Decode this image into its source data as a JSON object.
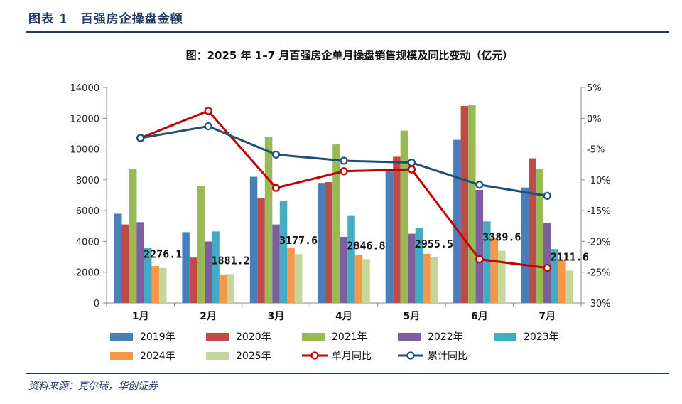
{
  "figure_label": "图表 1　百强房企操盘金额",
  "source": "资料来源：克尔瑞，华创证券",
  "chart_data": {
    "type": "bar",
    "title": "图：2025 年 1–7 月百强房企单月操盘销售规模及同比变动（亿元）",
    "categories": [
      "1月",
      "2月",
      "3月",
      "4月",
      "5月",
      "6月",
      "7月"
    ],
    "ylim": [
      0,
      14000
    ],
    "yticks": [
      "0",
      "2000",
      "4000",
      "6000",
      "8000",
      "10000",
      "12000",
      "14000"
    ],
    "y2lim": [
      -30,
      5
    ],
    "y2ticks": [
      "-30%",
      "-25%",
      "-20%",
      "-15%",
      "-10%",
      "-5%",
      "0%",
      "5%"
    ],
    "series": [
      {
        "name": "2019年",
        "color": "#4a7ebb",
        "values": [
          5800,
          4600,
          8200,
          7800,
          8600,
          10600,
          7500
        ]
      },
      {
        "name": "2020年",
        "color": "#be4b48",
        "values": [
          5100,
          2950,
          6800,
          7850,
          9500,
          12800,
          9400
        ]
      },
      {
        "name": "2021年",
        "color": "#98b954",
        "values": [
          8700,
          7600,
          10800,
          10300,
          11200,
          12850,
          8700
        ]
      },
      {
        "name": "2022年",
        "color": "#7d5fa0",
        "values": [
          5250,
          4000,
          5100,
          4300,
          4500,
          7350,
          5200
        ]
      },
      {
        "name": "2023年",
        "color": "#46aac4",
        "values": [
          3600,
          4650,
          6650,
          5700,
          4850,
          5300,
          3500
        ]
      },
      {
        "name": "2024年",
        "color": "#f79646",
        "values": [
          2400,
          1850,
          3600,
          3100,
          3200,
          4200,
          2800
        ]
      },
      {
        "name": "2025年",
        "color": "#c3d69b",
        "values": [
          2276.1,
          1881.2,
          3177.6,
          2846.8,
          2955.5,
          3389.6,
          2111.6
        ]
      }
    ],
    "data_labels": [
      "2276.1",
      "1881.2",
      "3177.6",
      "2846.8",
      "2955.5",
      "3389.6",
      "2111.6"
    ],
    "lines": [
      {
        "name": "单月同比",
        "color": "#c00000",
        "values": [
          -3.2,
          1.2,
          -11.3,
          -8.6,
          -8.3,
          -22.9,
          -24.3
        ]
      },
      {
        "name": "累计同比",
        "color": "#1f4e79",
        "values": [
          -3.2,
          -1.3,
          -5.9,
          -6.9,
          -7.2,
          -10.8,
          -12.6
        ]
      }
    ],
    "legend": [
      "2019年",
      "2020年",
      "2021年",
      "2022年",
      "2023年",
      "2024年",
      "2025年",
      "单月同比",
      "累计同比"
    ],
    "legend_position": "bottom"
  }
}
